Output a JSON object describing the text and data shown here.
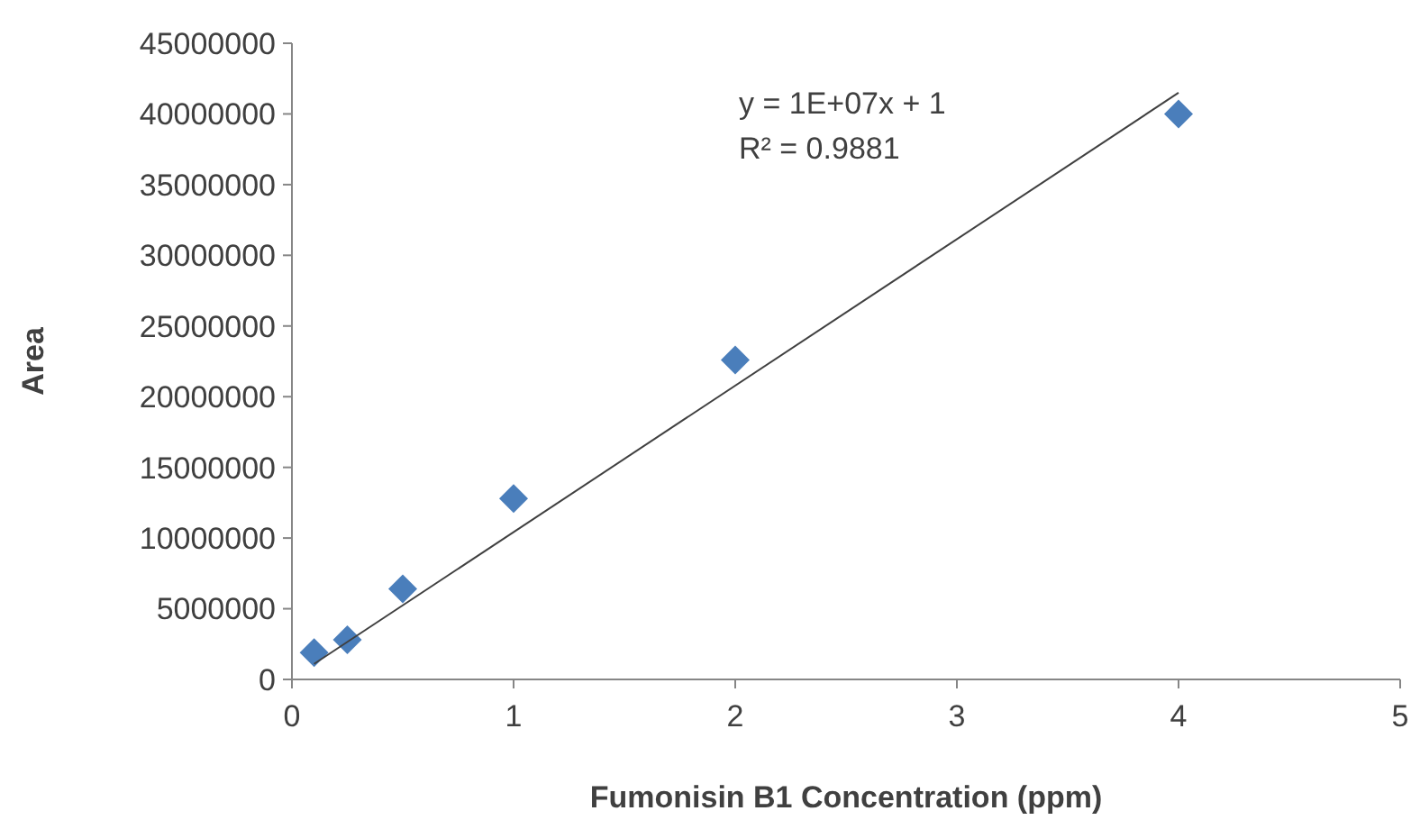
{
  "chart_data": {
    "type": "scatter",
    "xlabel": "Fumonisin B1 Concentration (ppm)",
    "ylabel": "Area",
    "xlim": [
      0,
      5
    ],
    "xticks": [
      0,
      1,
      2,
      3,
      4,
      5
    ],
    "ylim": [
      0,
      45000000
    ],
    "yticks": [
      0,
      5000000,
      10000000,
      15000000,
      20000000,
      25000000,
      30000000,
      35000000,
      40000000,
      45000000
    ],
    "grid": false,
    "marker": "diamond",
    "annotations": [
      "y = 1E+07x + 1",
      "R² = 0.9881"
    ],
    "series": [
      {
        "type": "scatter",
        "color": "#4a7ebb",
        "x": [
          0.1,
          0.25,
          0.5,
          1,
          2,
          4
        ],
        "values": [
          1900000,
          2800000,
          6400000,
          12800000,
          22600000,
          40000000
        ]
      },
      {
        "type": "line",
        "color": "#404040",
        "marker": "none",
        "line_style": "solid",
        "x": [
          0.1,
          4
        ],
        "values": [
          1100000,
          41500000
        ]
      }
    ]
  }
}
